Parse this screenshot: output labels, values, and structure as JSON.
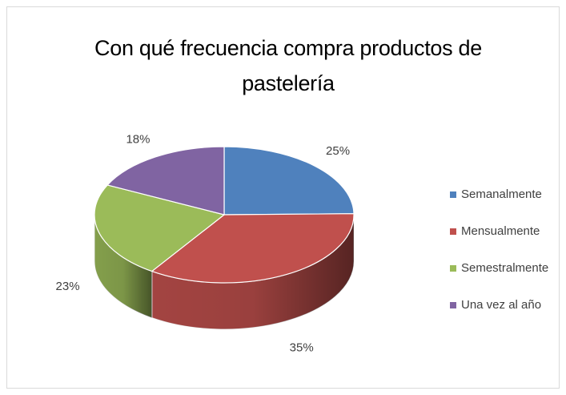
{
  "chart_data": {
    "type": "pie",
    "title": "Con qué frecuencia compra productos de pastelería",
    "categories": [
      "Semanalmente",
      "Mensualmente",
      "Semestralmente",
      "Una vez al año"
    ],
    "values": [
      25,
      35,
      23,
      18
    ],
    "value_labels": [
      "25%",
      "35%",
      "23%",
      "18%"
    ],
    "colors": [
      "#4f81bd",
      "#c0504d",
      "#9bbb59",
      "#8064a2"
    ],
    "legend": "right"
  }
}
